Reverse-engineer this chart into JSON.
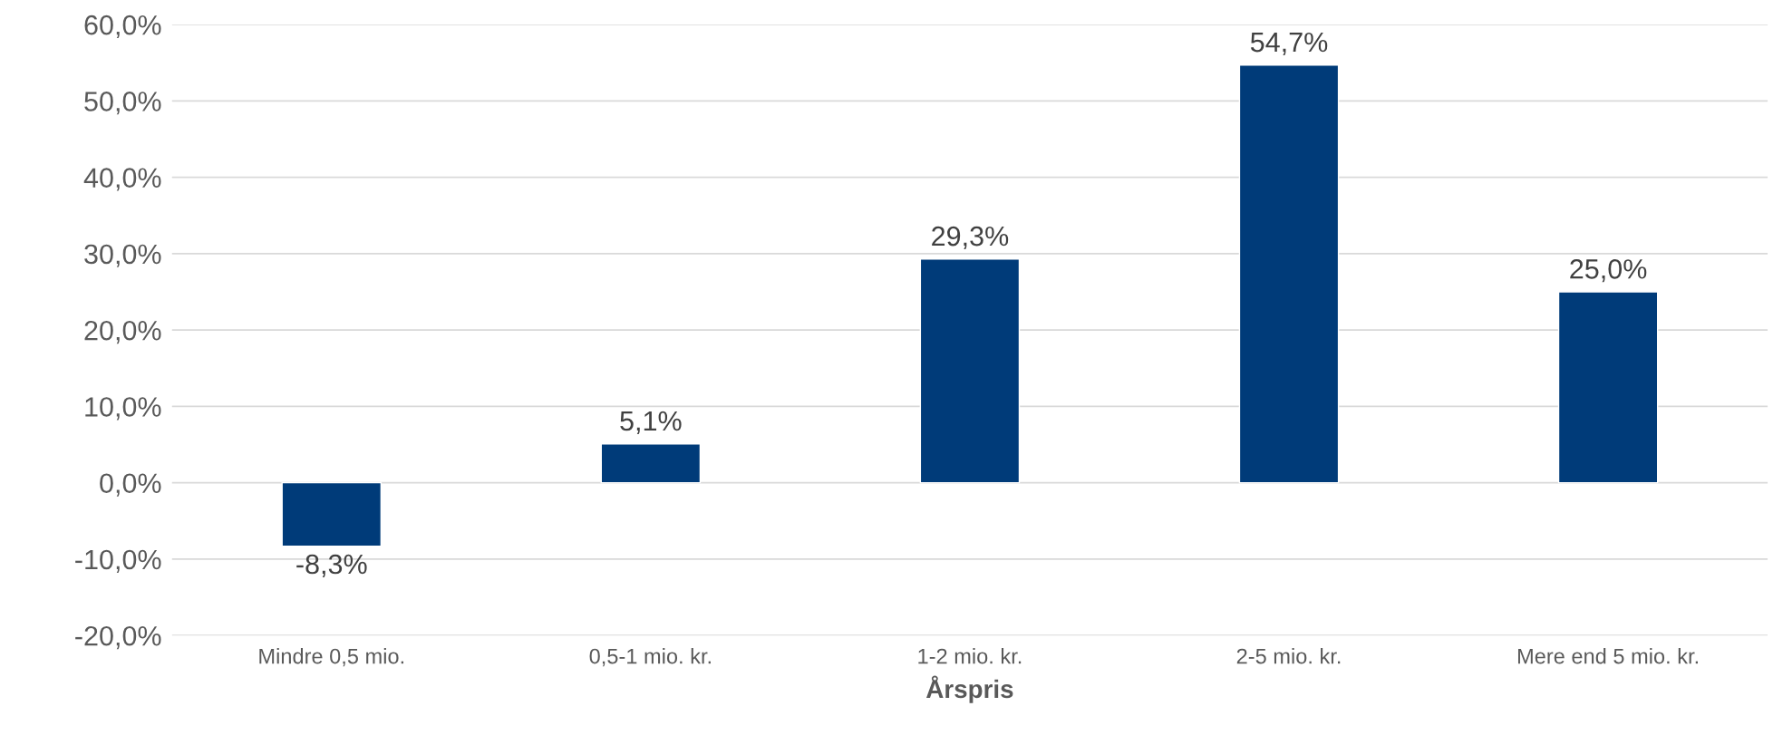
{
  "chart_data": {
    "type": "bar",
    "xlabel": "Årspris",
    "categories": [
      "Mindre 0,5 mio.",
      "0,5-1 mio. kr.",
      "1-2 mio. kr.",
      "2-5 mio. kr.",
      "Mere end 5 mio. kr."
    ],
    "values": [
      -8.3,
      5.1,
      29.3,
      54.7,
      25.0
    ],
    "value_labels": [
      "-8,3%",
      "5,1%",
      "29,3%",
      "54,7%",
      "25,0%"
    ],
    "color": "#003b79",
    "ylim": [
      -20,
      60
    ],
    "yticks": [
      {
        "value": -20,
        "label": "-20,0%"
      },
      {
        "value": -10,
        "label": "-10,0%"
      },
      {
        "value": 0,
        "label": "0,0%"
      },
      {
        "value": 10,
        "label": "10,0%"
      },
      {
        "value": 20,
        "label": "20,0%"
      },
      {
        "value": 30,
        "label": "30,0%"
      },
      {
        "value": 40,
        "label": "40,0%"
      },
      {
        "value": 50,
        "label": "50,0%"
      },
      {
        "value": 60,
        "label": "60,0%"
      }
    ],
    "grid": "y",
    "legend": false
  }
}
